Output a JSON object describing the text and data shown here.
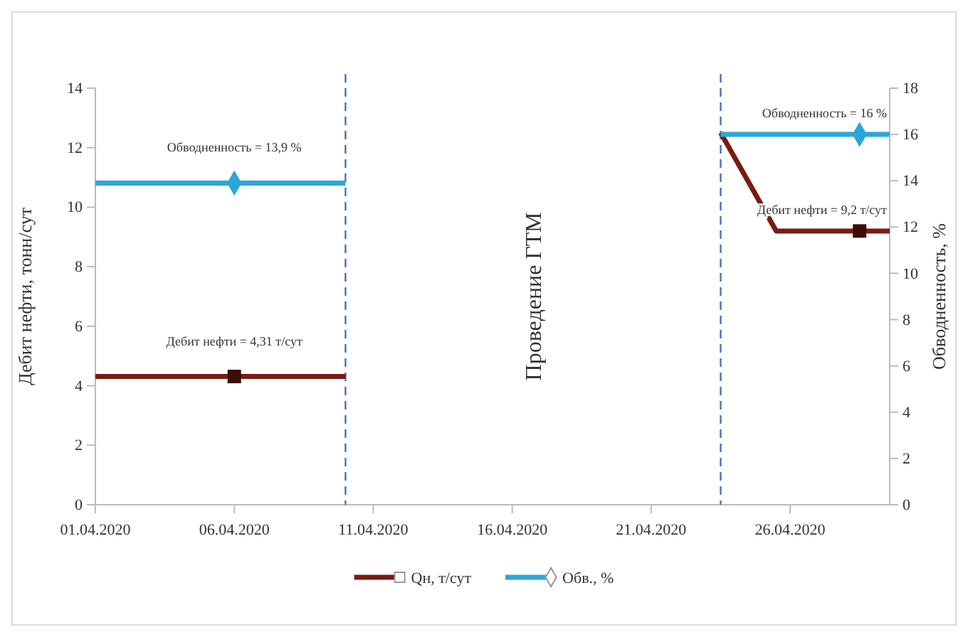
{
  "chart_data": {
    "type": "line",
    "xlabel": null,
    "ylabel": "Дебит нефти, тонн/сут",
    "y2label": "Обводненность, %",
    "annotations": [
      "Проведение ГТМ"
    ],
    "x": [
      "2020-04-01",
      "2020-04-06",
      "2020-04-10",
      "2020-04-16",
      "2020-04-23T12:00",
      "2020-04-25T12:00",
      "2020-04-28T12:00",
      "2020-04-29T14:00"
    ],
    "series": [
      {
        "name": "Qн, т/сут",
        "color": "#7b1a12",
        "values": [
          4.31,
          4.31,
          4.31,
          null,
          12.5,
          9.2,
          9.2,
          9.2
        ]
      },
      {
        "name": "Обв., %",
        "color": "#2aa7d8",
        "axis": "y2",
        "x": [
          "2020-04-01",
          "2020-04-06",
          "2020-04-10",
          "2020-04-16",
          "2020-04-23T12:00",
          "2020-04-28T12:00",
          "2020-04-29T14:00"
        ],
        "values": [
          13.9,
          13.9,
          13.9,
          null,
          16,
          16,
          16
        ]
      },
      {
        "type": "scatter",
        "color": "#3b0c08",
        "x": [
          "2020-04-06",
          "2020-04-28T12:00"
        ],
        "values": [
          4.31,
          9.2
        ],
        "marker": "square",
        "value_labels": [
          "Дебит нефти = 4,31 т/сут",
          "Дебит нефти = 9,2 т/сут"
        ]
      },
      {
        "type": "scatter",
        "color": "#2aa7d8",
        "axis": "y2",
        "x": [
          "2020-04-06",
          "2020-04-28T12:00"
        ],
        "values": [
          13.9,
          16
        ],
        "marker": "diamond",
        "value_labels": [
          "Обводненность = 13,9 %",
          "Обводненность = 16 %"
        ]
      }
    ],
    "xlim": [
      "2020-04-01",
      "2020-04-29T14:00"
    ],
    "xticks": [
      {
        "value": "2020-04-01",
        "label": "01.04.2020"
      },
      {
        "value": "2020-04-06",
        "label": "06.04.2020"
      },
      {
        "value": "2020-04-11",
        "label": "11.04.2020"
      },
      {
        "value": "2020-04-16",
        "label": "16.04.2020"
      },
      {
        "value": "2020-04-21",
        "label": "21.04.2020"
      },
      {
        "value": "2020-04-26",
        "label": "26.04.2020"
      }
    ],
    "ylim": [
      0,
      14
    ],
    "yticks": [
      0,
      2,
      4,
      6,
      8,
      10,
      12,
      14
    ],
    "y2lim": [
      0,
      18
    ],
    "y2ticks": [
      0,
      2,
      4,
      6,
      8,
      10,
      12,
      14,
      16,
      18
    ],
    "ref_lines": [
      {
        "axis": "x",
        "value": "2020-04-10",
        "color": "#4a6fc0",
        "line_style": "dashed"
      },
      {
        "axis": "x",
        "value": "2020-04-23T12:00",
        "color": "#4a6fc0",
        "line_style": "dashed"
      }
    ],
    "grid": false,
    "legend": "bottom"
  }
}
